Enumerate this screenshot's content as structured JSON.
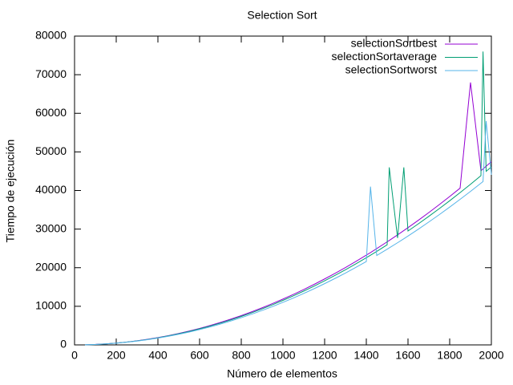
{
  "chart_data": {
    "type": "line",
    "title": "Selection Sort",
    "x_label": "Número de elementos",
    "y_label": "Tiempo de ejecución",
    "x": [
      50,
      100,
      150,
      200,
      250,
      300,
      350,
      400,
      450,
      500,
      550,
      600,
      650,
      700,
      750,
      800,
      850,
      900,
      950,
      1000,
      1050,
      1100,
      1150,
      1200,
      1250,
      1300,
      1350,
      1400,
      1420,
      1450,
      1500,
      1510,
      1550,
      1580,
      1600,
      1650,
      1700,
      1750,
      1800,
      1850,
      1900,
      1950,
      1960,
      1975,
      2000
    ],
    "series": [
      {
        "name": "selectionSortbest",
        "color": "#9400d3",
        "values": [
          30,
          120,
          270,
          480,
          740,
          1070,
          1450,
          1900,
          2400,
          2970,
          3590,
          4270,
          5010,
          5810,
          6670,
          7590,
          8570,
          9610,
          10710,
          11870,
          13080,
          14360,
          15690,
          17090,
          18540,
          20050,
          21620,
          23260,
          23900,
          24950,
          26700,
          27050,
          28500,
          29620,
          30370,
          32300,
          34290,
          36340,
          38440,
          40610,
          68000,
          45120,
          45580,
          46280,
          47460
        ]
      },
      {
        "name": "selectionSortaverage",
        "color": "#009e73",
        "values": [
          28,
          115,
          260,
          460,
          720,
          1040,
          1410,
          1840,
          2330,
          2880,
          3480,
          4150,
          4870,
          5650,
          6480,
          7380,
          8330,
          9340,
          10400,
          11530,
          12710,
          13950,
          15240,
          16600,
          18010,
          19480,
          21010,
          22590,
          23240,
          24230,
          25930,
          46000,
          27690,
          46000,
          29510,
          31380,
          33310,
          35300,
          37340,
          39450,
          41610,
          43830,
          76000,
          44960,
          46100
        ]
      },
      {
        "name": "selectionSortworst",
        "color": "#56b4e9",
        "values": [
          27,
          110,
          250,
          440,
          690,
          990,
          1350,
          1760,
          2230,
          2750,
          3330,
          3970,
          4650,
          5400,
          6200,
          7050,
          7960,
          8920,
          9940,
          11020,
          12150,
          13330,
          14570,
          15870,
          17220,
          18620,
          20080,
          21600,
          41000,
          23160,
          24790,
          25120,
          26470,
          27500,
          28200,
          29990,
          31840,
          33740,
          35700,
          37710,
          39770,
          41890,
          42320,
          58000,
          44070
        ]
      }
    ],
    "xlim": [
      0,
      2000
    ],
    "xticks": [
      0,
      200,
      400,
      600,
      800,
      1000,
      1200,
      1400,
      1600,
      1800,
      2000
    ],
    "ylim": [
      0,
      80000
    ],
    "yticks": [
      0,
      10000,
      20000,
      30000,
      40000,
      50000,
      60000,
      70000,
      80000
    ],
    "legend": "top-right"
  }
}
